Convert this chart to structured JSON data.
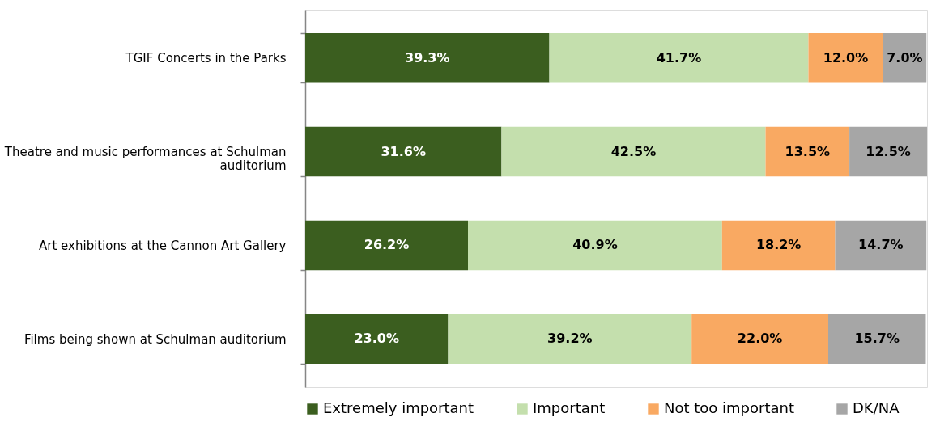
{
  "chart_data": {
    "type": "bar",
    "orientation": "horizontal",
    "stacked": true,
    "legend": "bottom",
    "categories": [
      "TGIF Concerts in the Parks",
      "Theatre and music performances at Schulman auditorium",
      "Art exhibitions at the Cannon Art Gallery",
      "Films being shown at Schulman auditorium"
    ],
    "series": [
      {
        "name": "Extremely important",
        "color": "#3b5e1f",
        "values": [
          39.3,
          31.6,
          26.2,
          23.0
        ],
        "value_labels": [
          "39.3%",
          "31.6%",
          "26.2%",
          "23.0%"
        ]
      },
      {
        "name": "Important",
        "color": "#c4dfad",
        "values": [
          41.7,
          42.5,
          40.9,
          39.2
        ],
        "value_labels": [
          "41.7%",
          "42.5%",
          "40.9%",
          "39.2%"
        ]
      },
      {
        "name": "Not too important",
        "color": "#f9a962",
        "values": [
          12.0,
          13.5,
          18.2,
          22.0
        ],
        "value_labels": [
          "12.0%",
          "13.5%",
          "18.2%",
          "22.0%"
        ]
      },
      {
        "name": "DK/NA",
        "color": "#a6a6a6",
        "values": [
          7.0,
          12.5,
          14.7,
          15.7
        ],
        "value_labels": [
          "7.0%",
          "12.5%",
          "14.7%",
          "15.7%"
        ]
      }
    ]
  }
}
